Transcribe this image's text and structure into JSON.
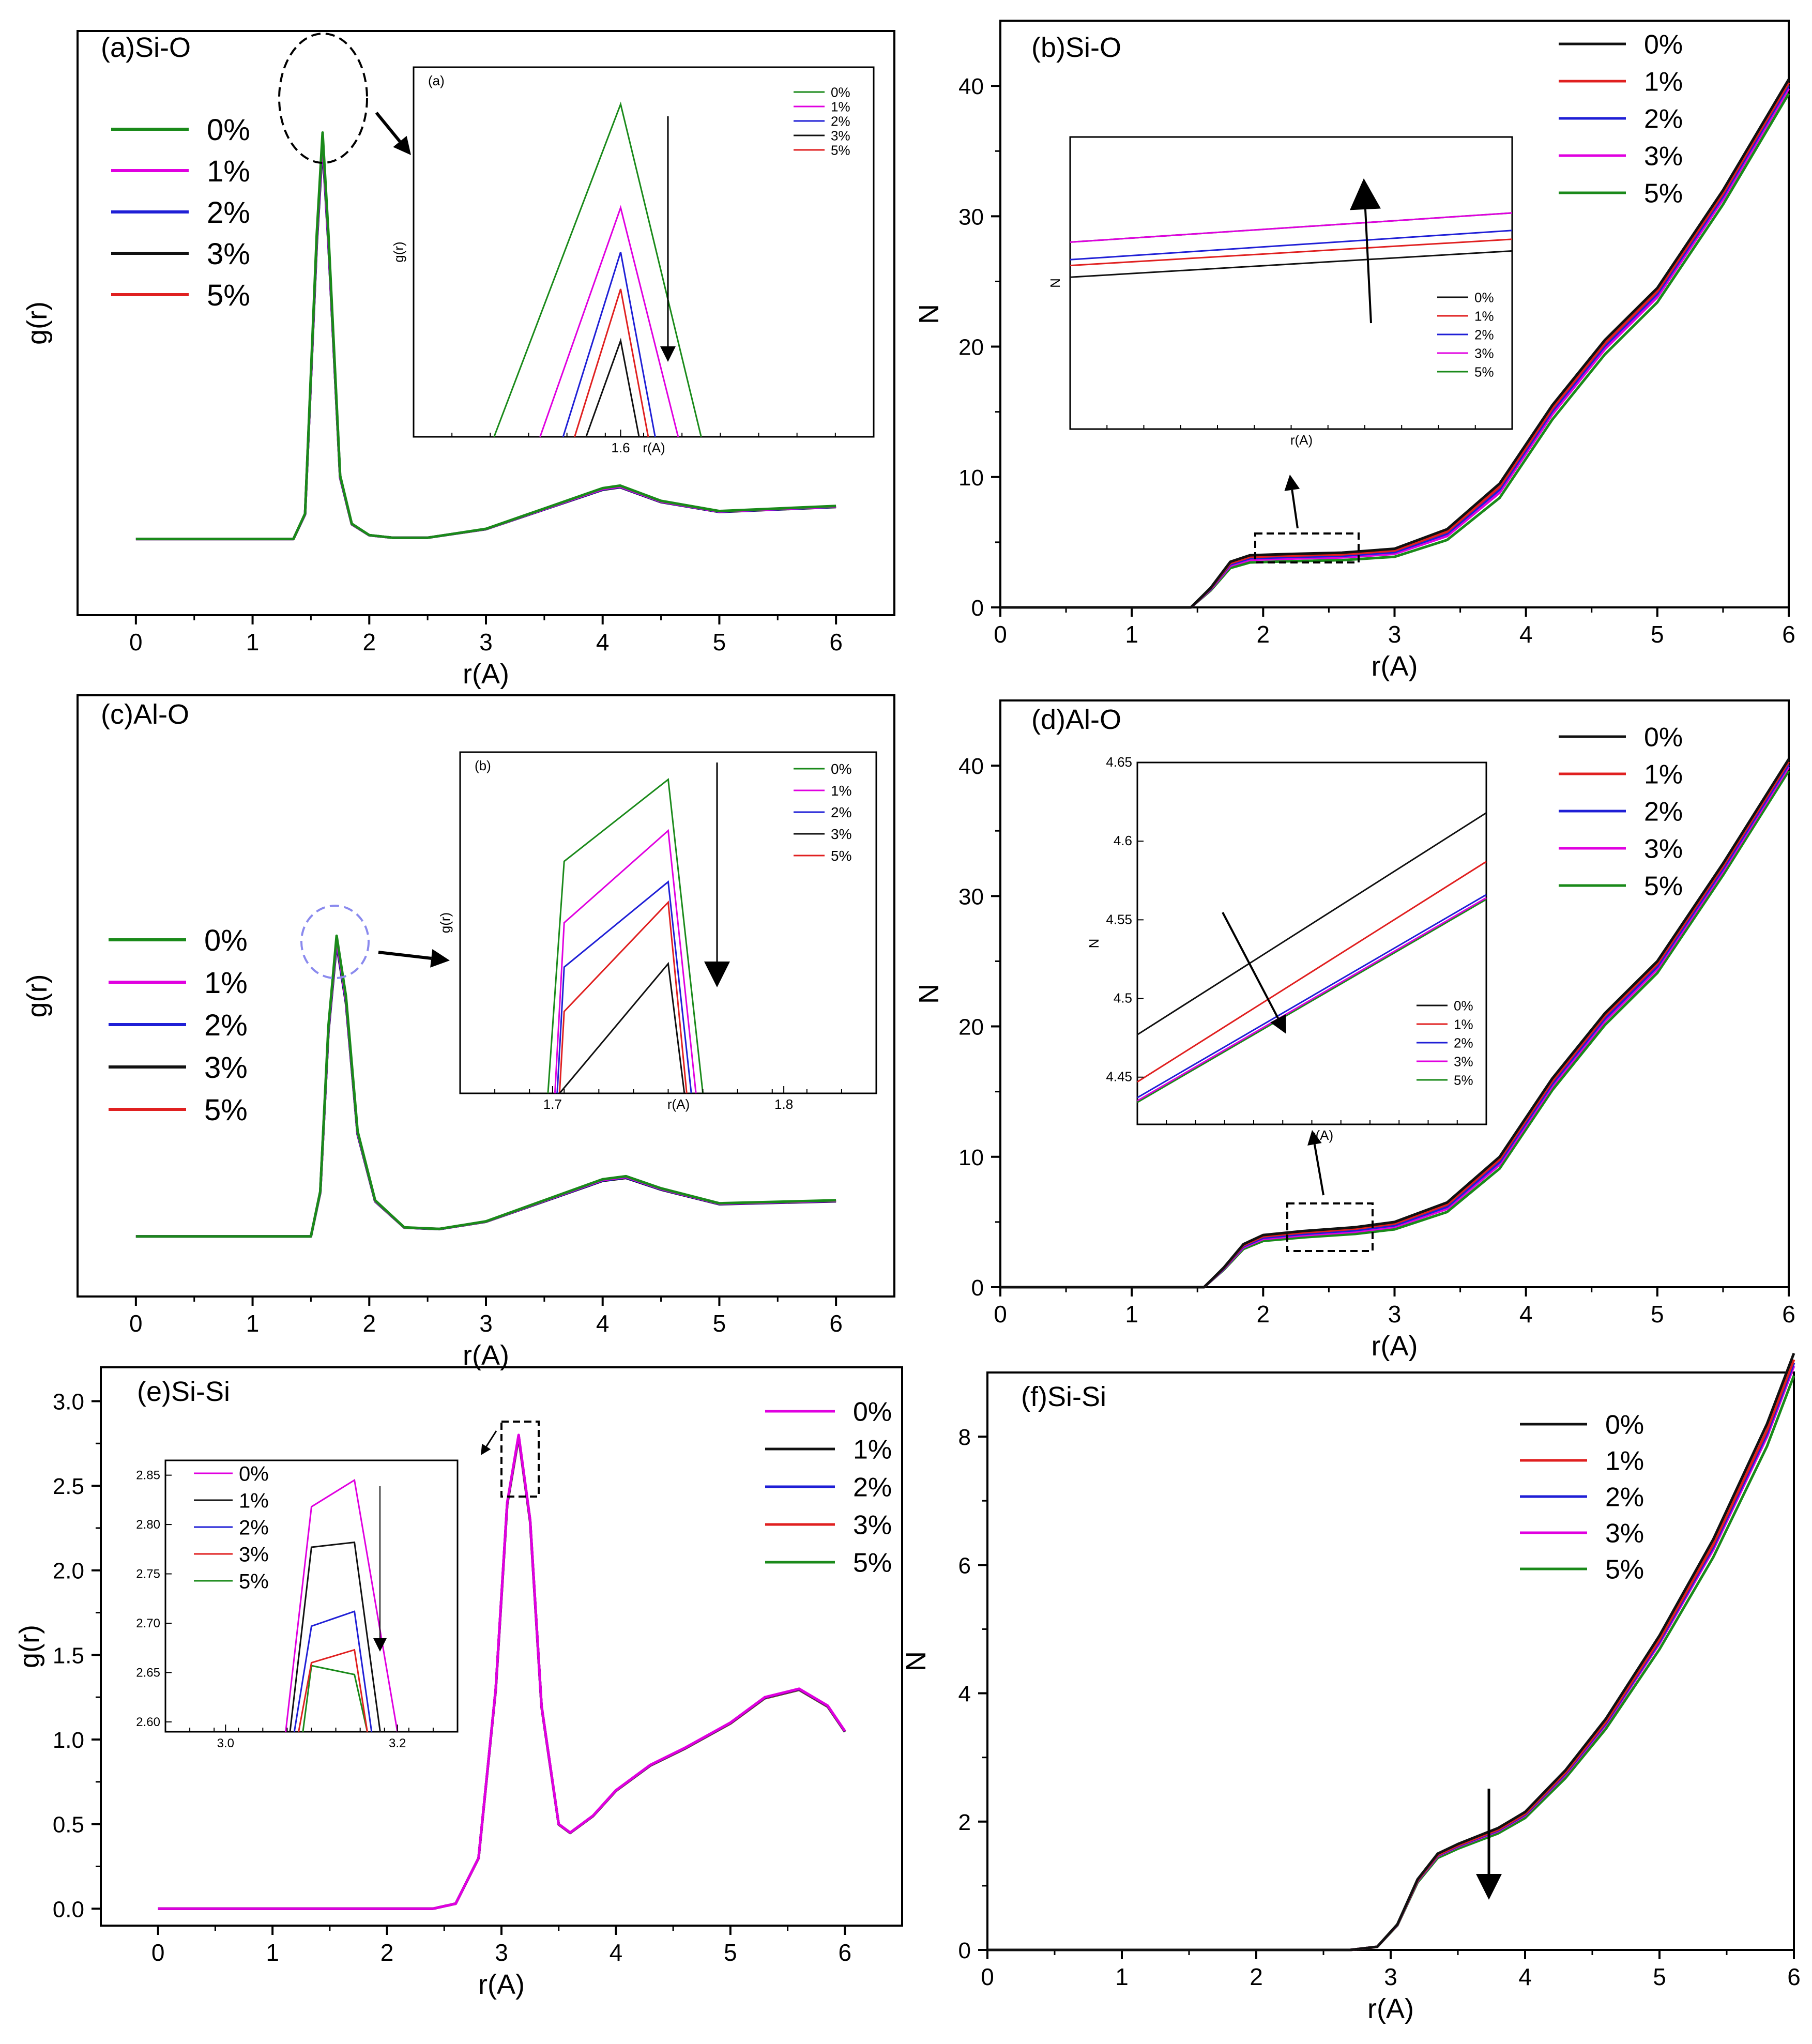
{
  "figure": {
    "background": "#ffffff"
  },
  "chart_data": [
    {
      "id": "a",
      "title": "(a)Si-O",
      "type": "line",
      "xlabel": "r(A)",
      "ylabel": "g(r)",
      "xlim": [
        -0.5,
        6.5
      ],
      "xticks": [
        0,
        1,
        2,
        3,
        4,
        5,
        6
      ],
      "ylim": [
        -3,
        20
      ],
      "yticks": [],
      "grid": false,
      "legend": "left",
      "series": [
        {
          "name": "0%",
          "color": "#1a8a1a"
        },
        {
          "name": "1%",
          "color": "#e000e0"
        },
        {
          "name": "2%",
          "color": "#1f1fd6"
        },
        {
          "name": "3%",
          "color": "#111111"
        },
        {
          "name": "5%",
          "color": "#e02020"
        }
      ],
      "curve": {
        "x": [
          0,
          1.35,
          1.45,
          1.55,
          1.6,
          1.65,
          1.75,
          1.85,
          2.0,
          2.2,
          2.5,
          3.0,
          3.5,
          4.0,
          4.15,
          4.5,
          5.0,
          6.0
        ],
        "y": [
          0,
          0,
          1.0,
          12.0,
          16.0,
          12.0,
          2.5,
          0.6,
          0.15,
          0.05,
          0.05,
          0.4,
          1.2,
          2.0,
          2.1,
          1.5,
          1.1,
          1.3
        ]
      },
      "curve_offsets": [
        0,
        -0.4,
        -0.6,
        -0.8,
        -0.7
      ],
      "inset": {
        "label": "(a)",
        "xlabel": "r(A)",
        "ylabel": "g(r)",
        "xlim": [
          1.51,
          1.71
        ],
        "xticks": [
          1.6
        ],
        "ylim": [
          0,
          1
        ],
        "legend": "top-right",
        "series": [
          {
            "name": "0%",
            "color": "#1a8a1a",
            "x": [
              1.545,
              1.6,
              1.635
            ],
            "y": [
              0,
              0.9,
              0
            ]
          },
          {
            "name": "1%",
            "color": "#e000e0",
            "x": [
              1.565,
              1.6,
              1.625
            ],
            "y": [
              0,
              0.62,
              0
            ]
          },
          {
            "name": "2%",
            "color": "#1f1fd6",
            "x": [
              1.575,
              1.6,
              1.615
            ],
            "y": [
              0,
              0.5,
              0
            ]
          },
          {
            "name": "3%",
            "color": "#111111",
            "x": [
              1.585,
              1.6,
              1.608
            ],
            "y": [
              0,
              0.26,
              0
            ]
          },
          {
            "name": "5%",
            "color": "#e02020",
            "x": [
              1.58,
              1.6,
              1.612
            ],
            "y": [
              0,
              0.4,
              0
            ]
          }
        ]
      }
    },
    {
      "id": "b",
      "title": "(b)Si-O",
      "type": "line",
      "xlabel": "r(A)",
      "ylabel": "N",
      "xlim": [
        0,
        6
      ],
      "xticks": [
        0,
        1,
        2,
        3,
        4,
        5,
        6
      ],
      "ylim": [
        0,
        45
      ],
      "yticks": [
        0,
        10,
        20,
        30,
        40
      ],
      "grid": false,
      "legend": "top-right",
      "series": [
        {
          "name": "0%",
          "color": "#111111"
        },
        {
          "name": "1%",
          "color": "#e02020"
        },
        {
          "name": "2%",
          "color": "#1f1fd6"
        },
        {
          "name": "3%",
          "color": "#e000e0"
        },
        {
          "name": "5%",
          "color": "#1a8a1a"
        }
      ],
      "curve": {
        "x": [
          0,
          1.45,
          1.6,
          1.75,
          1.9,
          2.2,
          2.6,
          3.0,
          3.4,
          3.8,
          4.2,
          4.6,
          5.0,
          5.5,
          6.0
        ],
        "y": [
          0,
          0,
          1.5,
          3.5,
          4.0,
          4.1,
          4.2,
          4.5,
          6.0,
          9.5,
          15.5,
          20.5,
          24.5,
          32.0,
          40.5
        ]
      },
      "curve_offsets": [
        0,
        -0.25,
        -0.45,
        -0.7,
        -1.1
      ],
      "inset": {
        "label": "",
        "xlabel": "r(A)",
        "ylabel": "N",
        "xlim": [
          0,
          1
        ],
        "xticks": [],
        "ylim": [
          0,
          1
        ],
        "legend": "bottom-right",
        "series": [
          {
            "name": "0%",
            "color": "#111111",
            "x": [
              0,
              1
            ],
            "y": [
              0.52,
              0.61
            ]
          },
          {
            "name": "1%",
            "color": "#e02020",
            "x": [
              0,
              1
            ],
            "y": [
              0.56,
              0.65
            ]
          },
          {
            "name": "2%",
            "color": "#1f1fd6",
            "x": [
              0,
              1
            ],
            "y": [
              0.58,
              0.68
            ]
          },
          {
            "name": "3%",
            "color": "#e000e0",
            "x": [
              0,
              1
            ],
            "y": [
              0.64,
              0.74
            ]
          },
          {
            "name": "5%",
            "color": "#1a8a1a",
            "x": [
              0,
              1
            ],
            "y": [
              0.64,
              0.74
            ]
          }
        ]
      }
    },
    {
      "id": "c",
      "title": "(c)Al-O",
      "type": "line",
      "xlabel": "r(A)",
      "ylabel": "g(r)",
      "xlim": [
        -0.5,
        6.5
      ],
      "xticks": [
        0,
        1,
        2,
        3,
        4,
        5,
        6
      ],
      "ylim": [
        -2,
        18
      ],
      "yticks": [],
      "grid": false,
      "legend": "left",
      "series": [
        {
          "name": "0%",
          "color": "#1a8a1a"
        },
        {
          "name": "1%",
          "color": "#e000e0"
        },
        {
          "name": "2%",
          "color": "#1f1fd6"
        },
        {
          "name": "3%",
          "color": "#111111"
        },
        {
          "name": "5%",
          "color": "#e02020"
        }
      ],
      "curve": {
        "x": [
          0,
          1.5,
          1.58,
          1.65,
          1.72,
          1.8,
          1.9,
          2.05,
          2.3,
          2.6,
          3.0,
          3.5,
          4.0,
          4.2,
          4.5,
          5.0,
          6.0
        ],
        "y": [
          0,
          0,
          1.5,
          7.0,
          10.0,
          8.0,
          3.5,
          1.2,
          0.3,
          0.25,
          0.5,
          1.2,
          1.9,
          2.0,
          1.6,
          1.1,
          1.2
        ]
      },
      "curve_offsets": [
        0,
        -0.3,
        -0.5,
        -0.7,
        -0.6
      ],
      "inset": {
        "label": "(b)",
        "xlabel": "r(A)",
        "ylabel": "g(r)",
        "xlim": [
          1.66,
          1.84
        ],
        "xticks": [
          1.7,
          1.8
        ],
        "ylim": [
          0,
          1
        ],
        "legend": "top-right",
        "series": [
          {
            "name": "0%",
            "color": "#1a8a1a",
            "x": [
              1.698,
              1.705,
              1.75,
              1.765
            ],
            "y": [
              0,
              0.68,
              0.92,
              0
            ]
          },
          {
            "name": "1%",
            "color": "#e000e0",
            "x": [
              1.701,
              1.705,
              1.75,
              1.762
            ],
            "y": [
              0,
              0.5,
              0.77,
              0
            ]
          },
          {
            "name": "2%",
            "color": "#1f1fd6",
            "x": [
              1.702,
              1.705,
              1.75,
              1.76
            ],
            "y": [
              0,
              0.37,
              0.62,
              0
            ]
          },
          {
            "name": "3%",
            "color": "#111111",
            "x": [
              1.703,
              1.75,
              1.757
            ],
            "y": [
              0,
              0.38,
              0
            ]
          },
          {
            "name": "5%",
            "color": "#e02020",
            "x": [
              1.703,
              1.705,
              1.75,
              1.758
            ],
            "y": [
              0,
              0.24,
              0.56,
              0
            ]
          }
        ]
      }
    },
    {
      "id": "d",
      "title": "(d)Al-O",
      "type": "line",
      "xlabel": "r(A)",
      "ylabel": "N",
      "xlim": [
        0,
        6
      ],
      "xticks": [
        0,
        1,
        2,
        3,
        4,
        5,
        6
      ],
      "ylim": [
        0,
        45
      ],
      "yticks": [
        0,
        10,
        20,
        30,
        40
      ],
      "grid": false,
      "legend": "top-right",
      "series": [
        {
          "name": "0%",
          "color": "#111111"
        },
        {
          "name": "1%",
          "color": "#e02020"
        },
        {
          "name": "2%",
          "color": "#1f1fd6"
        },
        {
          "name": "3%",
          "color": "#e000e0"
        },
        {
          "name": "5%",
          "color": "#1a8a1a"
        }
      ],
      "curve": {
        "x": [
          0,
          1.55,
          1.7,
          1.85,
          2.0,
          2.3,
          2.7,
          3.0,
          3.4,
          3.8,
          4.2,
          4.6,
          5.0,
          5.5,
          6.0
        ],
        "y": [
          0,
          0,
          1.5,
          3.3,
          4.0,
          4.3,
          4.6,
          5.0,
          6.5,
          10.0,
          16.0,
          21.0,
          25.0,
          32.5,
          40.5
        ]
      },
      "curve_offsets": [
        0,
        -0.2,
        -0.4,
        -0.6,
        -0.9
      ],
      "inset": {
        "label": "",
        "xlabel": "r(A)",
        "ylabel": "N",
        "xlim": [
          0,
          1
        ],
        "xticks": [],
        "ylim": [
          4.42,
          4.65
        ],
        "yticks": [
          4.45,
          4.5,
          4.55,
          4.6,
          4.65
        ],
        "legend": "bottom-right",
        "series": [
          {
            "name": "0%",
            "color": "#111111",
            "x": [
              0,
              1
            ],
            "y": [
              4.477,
              4.618
            ]
          },
          {
            "name": "1%",
            "color": "#e02020",
            "x": [
              0,
              1
            ],
            "y": [
              4.447,
              4.587
            ]
          },
          {
            "name": "2%",
            "color": "#1f1fd6",
            "x": [
              0,
              1
            ],
            "y": [
              4.437,
              4.566
            ]
          },
          {
            "name": "3%",
            "color": "#e000e0",
            "x": [
              0,
              1
            ],
            "y": [
              4.435,
              4.564
            ]
          },
          {
            "name": "5%",
            "color": "#1a8a1a",
            "x": [
              0,
              1
            ],
            "y": [
              4.434,
              4.563
            ]
          }
        ]
      }
    },
    {
      "id": "e",
      "title": "(e)Si-Si",
      "type": "line",
      "xlabel": "r(A)",
      "ylabel": "g(r)",
      "xlim": [
        -0.5,
        6.5
      ],
      "xticks": [
        0,
        1,
        2,
        3,
        4,
        5,
        6
      ],
      "ylim": [
        -0.1,
        3.2
      ],
      "yticks": [
        0.0,
        0.5,
        1.0,
        1.5,
        2.0,
        2.5,
        3.0
      ],
      "ytick_labels": [
        "0.0",
        "0.5",
        "1.0",
        "1.5",
        "2.0",
        "2.5",
        "3.0"
      ],
      "grid": false,
      "legend": "top-right",
      "series": [
        {
          "name": "0%",
          "color": "#e000e0"
        },
        {
          "name": "1%",
          "color": "#111111"
        },
        {
          "name": "2%",
          "color": "#1f1fd6"
        },
        {
          "name": "3%",
          "color": "#e02020"
        },
        {
          "name": "5%",
          "color": "#1a8a1a"
        }
      ],
      "curve": {
        "x": [
          0,
          2.4,
          2.6,
          2.8,
          2.95,
          3.05,
          3.15,
          3.25,
          3.35,
          3.5,
          3.6,
          3.8,
          4.0,
          4.3,
          4.6,
          5.0,
          5.3,
          5.6,
          5.85,
          6.0
        ],
        "y": [
          0,
          0,
          0.03,
          0.3,
          1.3,
          2.4,
          2.8,
          2.3,
          1.2,
          0.5,
          0.45,
          0.55,
          0.7,
          0.85,
          0.95,
          1.1,
          1.25,
          1.3,
          1.2,
          1.05
        ]
      },
      "curve_offsets": [
        0,
        -0.03,
        -0.06,
        -0.1,
        -0.13
      ],
      "inset": {
        "label": "",
        "xlabel": "",
        "ylabel": "",
        "xlim": [
          2.93,
          3.27
        ],
        "xticks": [
          3.0,
          3.2
        ],
        "xtick_labels": [
          "3.0",
          "3.2"
        ],
        "ylim": [
          2.59,
          2.865
        ],
        "yticks": [
          2.6,
          2.65,
          2.7,
          2.75,
          2.8,
          2.85
        ],
        "ytick_labels": [
          "2.60",
          "2.65",
          "2.70",
          "2.75",
          "2.80",
          "2.85"
        ],
        "legend": "top-left",
        "series": [
          {
            "name": "0%",
            "color": "#e000e0",
            "x": [
              3.07,
              3.1,
              3.15,
              3.2
            ],
            "y": [
              2.59,
              2.818,
              2.845,
              2.59
            ]
          },
          {
            "name": "1%",
            "color": "#111111",
            "x": [
              3.075,
              3.1,
              3.15,
              3.18
            ],
            "y": [
              2.59,
              2.777,
              2.782,
              2.59
            ]
          },
          {
            "name": "2%",
            "color": "#1f1fd6",
            "x": [
              3.08,
              3.1,
              3.15,
              3.17
            ],
            "y": [
              2.59,
              2.697,
              2.712,
              2.59
            ]
          },
          {
            "name": "3%",
            "color": "#e02020",
            "x": [
              3.085,
              3.1,
              3.15,
              3.165
            ],
            "y": [
              2.59,
              2.66,
              2.673,
              2.59
            ]
          },
          {
            "name": "5%",
            "color": "#1a8a1a",
            "x": [
              3.09,
              3.1,
              3.15,
              3.165
            ],
            "y": [
              2.59,
              2.657,
              2.648,
              2.59
            ]
          }
        ]
      }
    },
    {
      "id": "f",
      "title": "(f)Si-Si",
      "type": "line",
      "xlabel": "r(A)",
      "ylabel": "N",
      "xlim": [
        0,
        6
      ],
      "xticks": [
        0,
        1,
        2,
        3,
        4,
        5,
        6
      ],
      "ylim": [
        0,
        9
      ],
      "yticks": [
        0,
        2,
        4,
        6,
        8
      ],
      "grid": false,
      "legend": "top-right",
      "series": [
        {
          "name": "0%",
          "color": "#111111"
        },
        {
          "name": "1%",
          "color": "#e02020"
        },
        {
          "name": "2%",
          "color": "#1f1fd6"
        },
        {
          "name": "3%",
          "color": "#e000e0"
        },
        {
          "name": "5%",
          "color": "#1a8a1a"
        }
      ],
      "curve": {
        "x": [
          0,
          2.7,
          2.9,
          3.05,
          3.2,
          3.35,
          3.5,
          3.8,
          4.0,
          4.3,
          4.6,
          5.0,
          5.4,
          5.8,
          6.0
        ],
        "y": [
          0,
          0,
          0.05,
          0.4,
          1.1,
          1.5,
          1.65,
          1.9,
          2.15,
          2.8,
          3.6,
          4.9,
          6.4,
          8.2,
          9.3
        ]
      },
      "curve_offsets": [
        0,
        -0.1,
        -0.15,
        -0.2,
        -0.35
      ]
    }
  ]
}
